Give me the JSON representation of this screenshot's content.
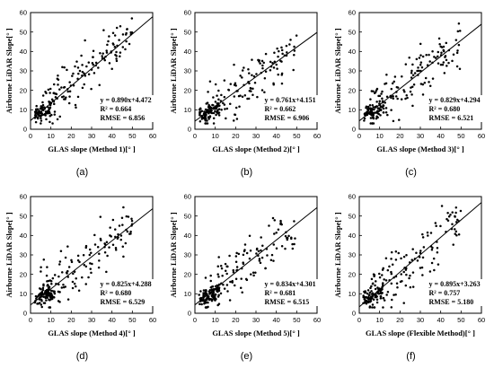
{
  "chart_data": [
    {
      "type": "scatter",
      "panel_label": "(a)",
      "xlabel": "GLAS slope (Method 1)[° ]",
      "ylabel": "Airborne LiDAR Slope[° ]",
      "xlim": [
        0,
        60
      ],
      "ylim": [
        0,
        60
      ],
      "xticks": [
        "0",
        "10",
        "20",
        "30",
        "40",
        "50",
        "60"
      ],
      "yticks": [
        "0",
        "10",
        "20",
        "30",
        "40",
        "50",
        "60"
      ],
      "fit": {
        "slope": 0.89,
        "intercept": 4.472
      },
      "annotations": [
        "y = 0.890x+4.472",
        "R² = 0.664",
        "RMSE = 6.856"
      ],
      "seed": 11
    },
    {
      "type": "scatter",
      "panel_label": "(b)",
      "xlabel": "GLAS slope (Method 2)[° ]",
      "ylabel": "Airborne LiDAR Slope[° ]",
      "xlim": [
        0,
        60
      ],
      "ylim": [
        0,
        60
      ],
      "xticks": [
        "0",
        "10",
        "20",
        "30",
        "40",
        "50",
        "60"
      ],
      "yticks": [
        "0",
        "10",
        "20",
        "30",
        "40",
        "50",
        "60"
      ],
      "fit": {
        "slope": 0.761,
        "intercept": 4.151
      },
      "annotations": [
        "y = 0.761x+4.151",
        "R² = 0.662",
        "RMSE = 6.906"
      ],
      "seed": 23
    },
    {
      "type": "scatter",
      "panel_label": "(c)",
      "xlabel": "GLAS slope (Method 3)[° ]",
      "ylabel": "Airborne LiDAR Slope[° ]",
      "xlim": [
        0,
        60
      ],
      "ylim": [
        0,
        60
      ],
      "xticks": [
        "0",
        "10",
        "20",
        "30",
        "40",
        "50",
        "60"
      ],
      "yticks": [
        "0",
        "10",
        "20",
        "30",
        "40",
        "50",
        "60"
      ],
      "fit": {
        "slope": 0.829,
        "intercept": 4.294
      },
      "annotations": [
        "y = 0.829x+4.294",
        "R² = 0.680",
        "RMSE = 6.521"
      ],
      "seed": 37
    },
    {
      "type": "scatter",
      "panel_label": "(d)",
      "xlabel": "GLAS slope (Method 4)[° ]",
      "ylabel": "Airborne LiDAR Slope[° ]",
      "xlim": [
        0,
        60
      ],
      "ylim": [
        0,
        60
      ],
      "xticks": [
        "0",
        "10",
        "20",
        "30",
        "40",
        "50",
        "60"
      ],
      "yticks": [
        "0",
        "10",
        "20",
        "30",
        "40",
        "50",
        "60"
      ],
      "fit": {
        "slope": 0.825,
        "intercept": 4.288
      },
      "annotations": [
        "y = 0.825x+4.288",
        "R² = 0.680",
        "RMSE = 6.529"
      ],
      "seed": 41
    },
    {
      "type": "scatter",
      "panel_label": "(e)",
      "xlabel": "GLAS slope (Method 5)[° ]",
      "ylabel": "Airborne LiDAR Slope[° ]",
      "xlim": [
        0,
        60
      ],
      "ylim": [
        0,
        60
      ],
      "xticks": [
        "0",
        "10",
        "20",
        "30",
        "40",
        "50",
        "60"
      ],
      "yticks": [
        "0",
        "10",
        "20",
        "30",
        "40",
        "50",
        "60"
      ],
      "fit": {
        "slope": 0.834,
        "intercept": 4.301
      },
      "annotations": [
        "y = 0.834x+4.301",
        "R² = 0.681",
        "RMSE = 6.515"
      ],
      "seed": 53
    },
    {
      "type": "scatter",
      "panel_label": "(f)",
      "xlabel": "GLAS slope (Flexible Method)[° ]",
      "ylabel": "Airborne LiDAR Slope[° ]",
      "xlim": [
        0,
        60
      ],
      "ylim": [
        0,
        60
      ],
      "xticks": [
        "0",
        "10",
        "20",
        "30",
        "40",
        "50",
        "60"
      ],
      "yticks": [
        "0",
        "10",
        "20",
        "30",
        "40",
        "50",
        "60"
      ],
      "fit": {
        "slope": 0.895,
        "intercept": 3.263
      },
      "annotations": [
        "y = 0.895x+3.263",
        "R² = 0.757",
        "RMSE = 5.180"
      ],
      "seed": 67
    }
  ]
}
